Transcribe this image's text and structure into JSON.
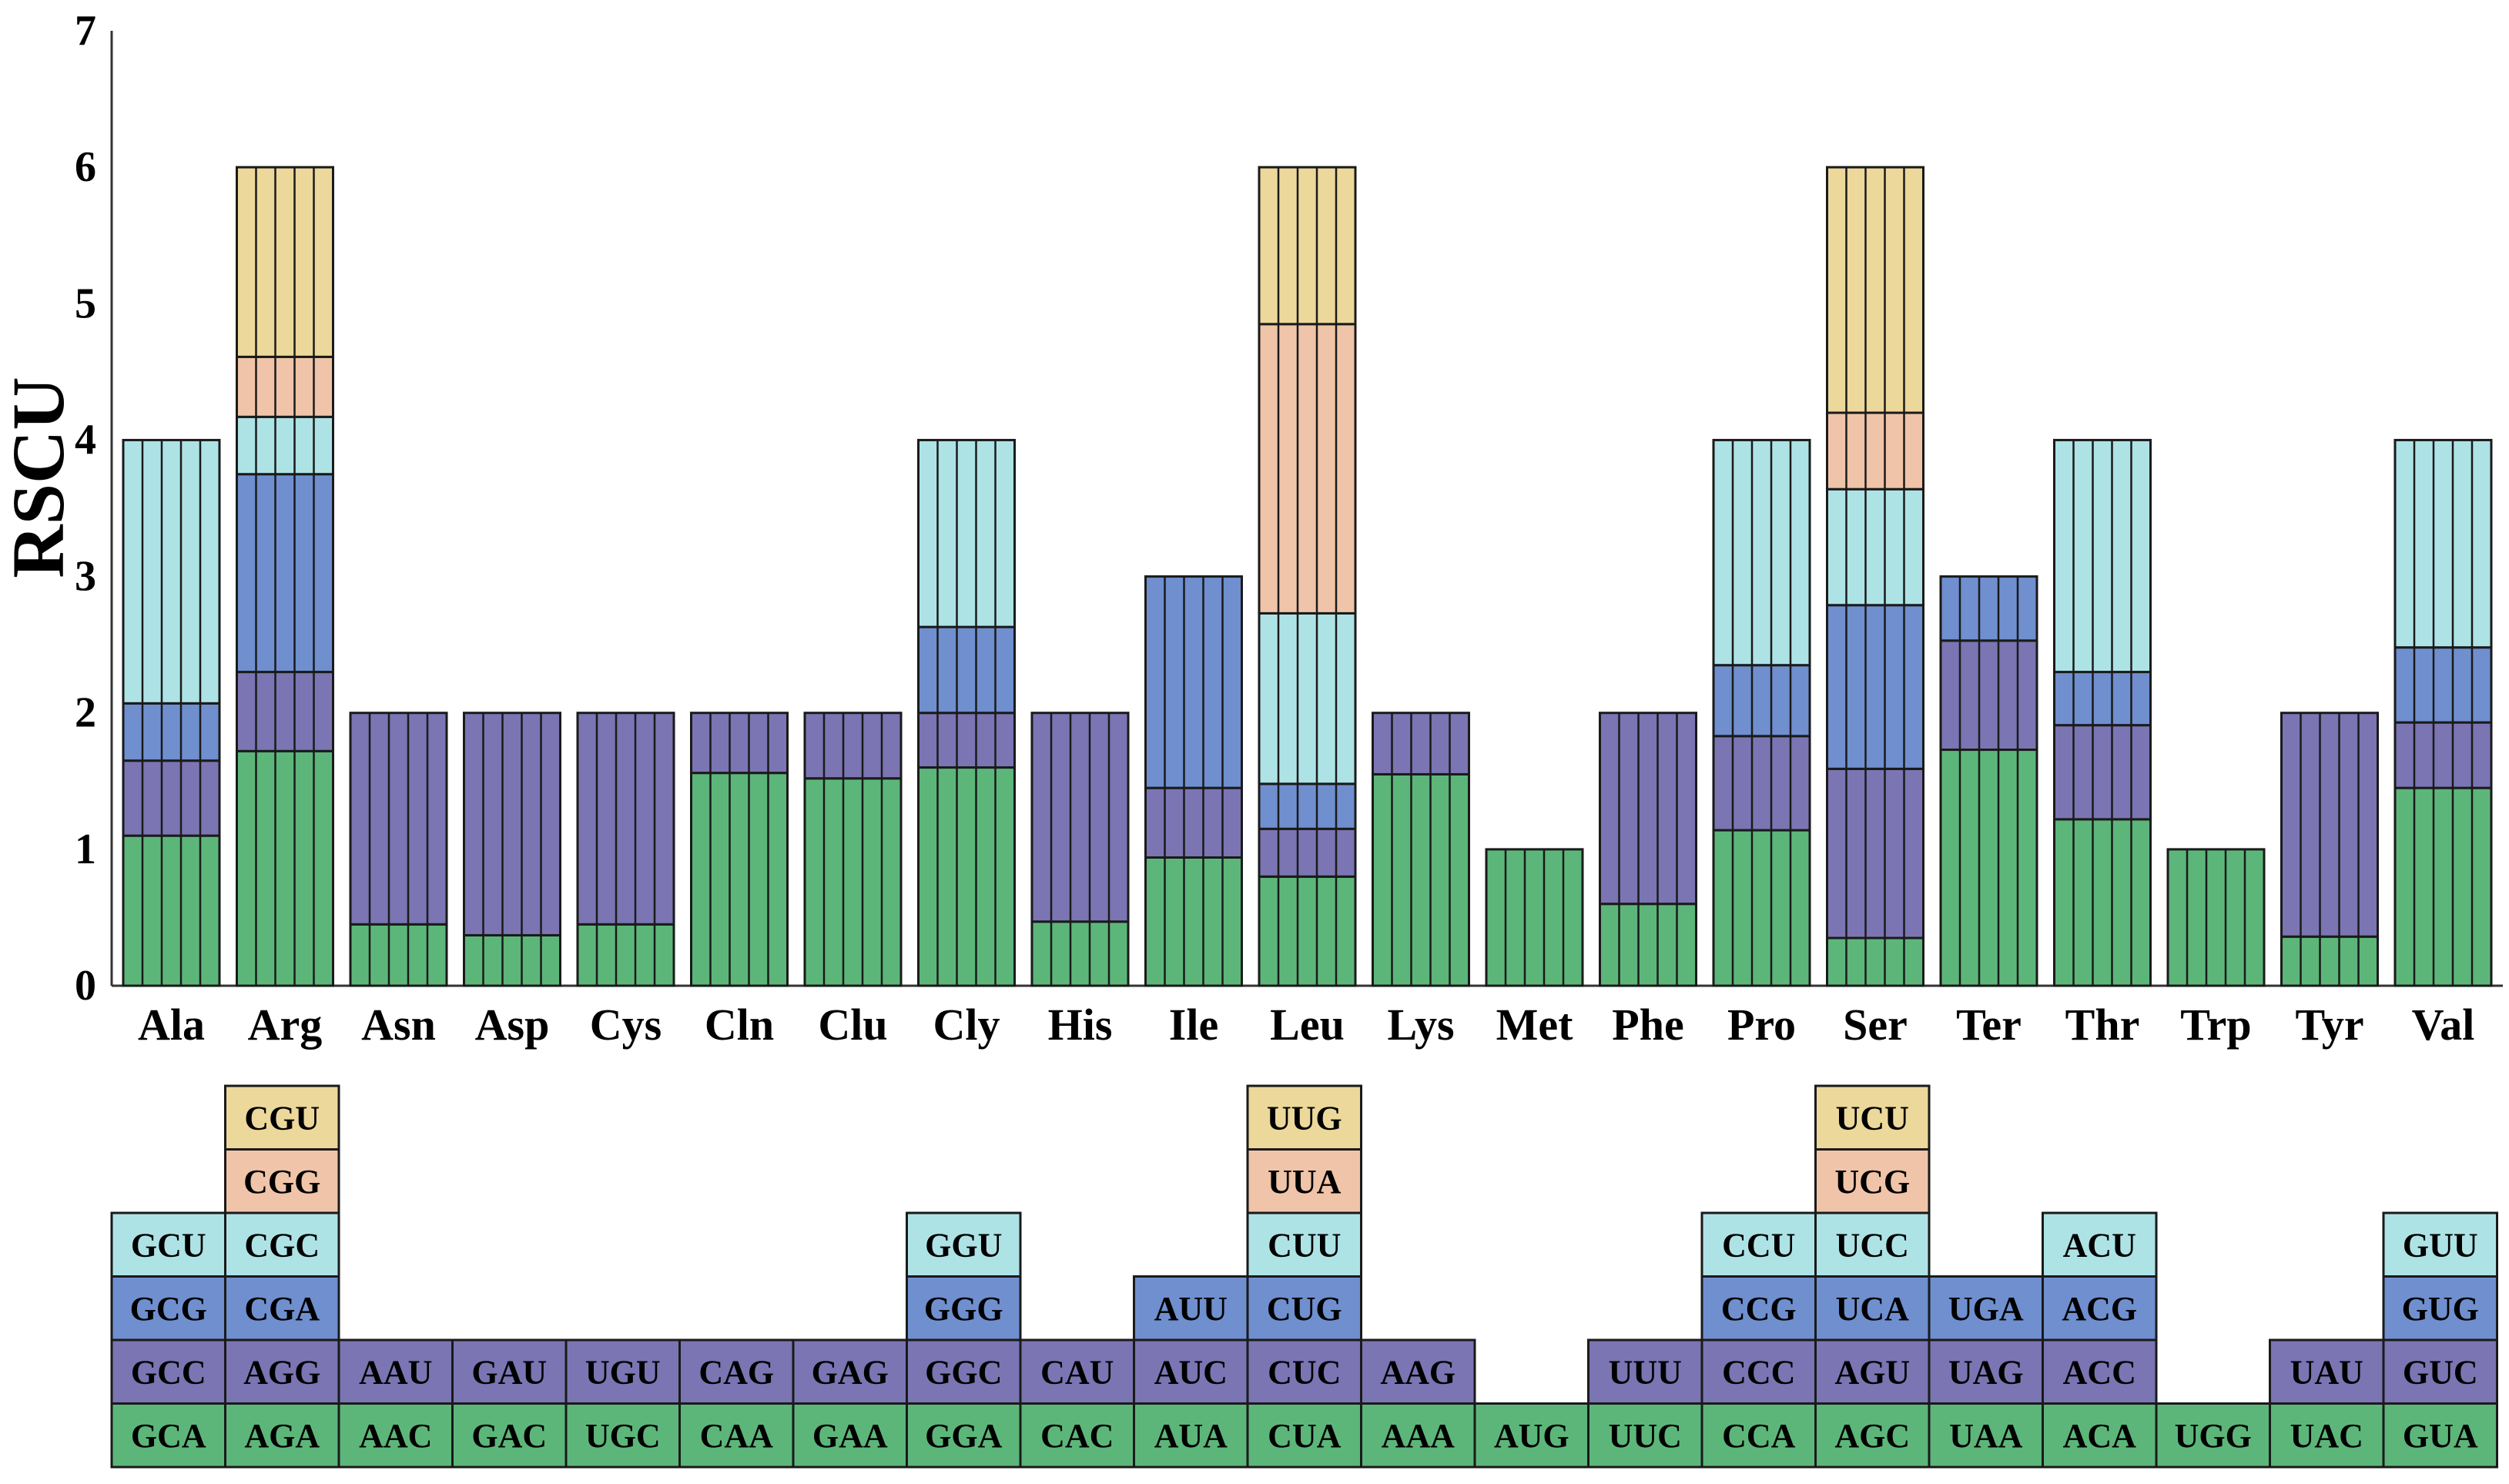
{
  "chart_data": {
    "type": "bar",
    "subtype": "stacked",
    "ylabel": "RSCU",
    "xlabel": "",
    "ylim": [
      0,
      7
    ],
    "yticks": [
      0,
      1,
      2,
      3,
      4,
      5,
      6,
      7
    ],
    "colors": [
      "#5cb67a",
      "#7b75b3",
      "#6f8fcf",
      "#aee3e6",
      "#f0c4a8",
      "#ecd89a"
    ],
    "groups": [
      {
        "name": "Ala",
        "segments": [
          {
            "codon": "GCA",
            "value": 1.1
          },
          {
            "codon": "GCC",
            "value": 0.55
          },
          {
            "codon": "GCG",
            "value": 0.42
          },
          {
            "codon": "GCU",
            "value": 1.93
          }
        ]
      },
      {
        "name": "Arg",
        "segments": [
          {
            "codon": "AGA",
            "value": 1.72
          },
          {
            "codon": "AGG",
            "value": 0.58
          },
          {
            "codon": "CGA",
            "value": 1.45
          },
          {
            "codon": "CGC",
            "value": 0.42
          },
          {
            "codon": "CGG",
            "value": 0.44
          },
          {
            "codon": "CGU",
            "value": 1.39
          }
        ]
      },
      {
        "name": "Asn",
        "segments": [
          {
            "codon": "AAC",
            "value": 0.45
          },
          {
            "codon": "AAU",
            "value": 1.55
          }
        ]
      },
      {
        "name": "Asp",
        "segments": [
          {
            "codon": "GAC",
            "value": 0.37
          },
          {
            "codon": "GAU",
            "value": 1.63
          }
        ]
      },
      {
        "name": "Cys",
        "segments": [
          {
            "codon": "UGC",
            "value": 0.45
          },
          {
            "codon": "UGU",
            "value": 1.55
          }
        ]
      },
      {
        "name": "Cln",
        "segments": [
          {
            "codon": "CAA",
            "value": 1.56
          },
          {
            "codon": "CAG",
            "value": 0.44
          }
        ]
      },
      {
        "name": "Clu",
        "segments": [
          {
            "codon": "GAA",
            "value": 1.52
          },
          {
            "codon": "GAG",
            "value": 0.48
          }
        ]
      },
      {
        "name": "Cly",
        "segments": [
          {
            "codon": "GGA",
            "value": 1.6
          },
          {
            "codon": "GGC",
            "value": 0.4
          },
          {
            "codon": "GGG",
            "value": 0.63
          },
          {
            "codon": "GGU",
            "value": 1.37
          }
        ]
      },
      {
        "name": "His",
        "segments": [
          {
            "codon": "CAC",
            "value": 0.47
          },
          {
            "codon": "CAU",
            "value": 1.53
          }
        ]
      },
      {
        "name": "Ile",
        "segments": [
          {
            "codon": "AUA",
            "value": 0.94
          },
          {
            "codon": "AUC",
            "value": 0.51
          },
          {
            "codon": "AUU",
            "value": 1.55
          }
        ]
      },
      {
        "name": "Leu",
        "segments": [
          {
            "codon": "CUA",
            "value": 0.8
          },
          {
            "codon": "CUC",
            "value": 0.35
          },
          {
            "codon": "CUG",
            "value": 0.33
          },
          {
            "codon": "CUU",
            "value": 1.25
          },
          {
            "codon": "UUA",
            "value": 2.12
          },
          {
            "codon": "UUG",
            "value": 1.15
          }
        ]
      },
      {
        "name": "Lys",
        "segments": [
          {
            "codon": "AAA",
            "value": 1.55
          },
          {
            "codon": "AAG",
            "value": 0.45
          }
        ]
      },
      {
        "name": "Met",
        "segments": [
          {
            "codon": "AUG",
            "value": 1.0
          }
        ]
      },
      {
        "name": "Phe",
        "segments": [
          {
            "codon": "UUC",
            "value": 0.6
          },
          {
            "codon": "UUU",
            "value": 1.4
          }
        ]
      },
      {
        "name": "Pro",
        "segments": [
          {
            "codon": "CCA",
            "value": 1.14
          },
          {
            "codon": "CCC",
            "value": 0.69
          },
          {
            "codon": "CCG",
            "value": 0.52
          },
          {
            "codon": "CCU",
            "value": 1.65
          }
        ]
      },
      {
        "name": "Ser",
        "segments": [
          {
            "codon": "AGC",
            "value": 0.35
          },
          {
            "codon": "AGU",
            "value": 1.24
          },
          {
            "codon": "UCA",
            "value": 1.2
          },
          {
            "codon": "UCC",
            "value": 0.85
          },
          {
            "codon": "UCG",
            "value": 0.56
          },
          {
            "codon": "UCU",
            "value": 1.8
          }
        ]
      },
      {
        "name": "Ter",
        "segments": [
          {
            "codon": "UAA",
            "value": 1.73
          },
          {
            "codon": "UAG",
            "value": 0.8
          },
          {
            "codon": "UGA",
            "value": 0.47
          }
        ]
      },
      {
        "name": "Thr",
        "segments": [
          {
            "codon": "ACA",
            "value": 1.22
          },
          {
            "codon": "ACC",
            "value": 0.69
          },
          {
            "codon": "ACG",
            "value": 0.39
          },
          {
            "codon": "ACU",
            "value": 1.7
          }
        ]
      },
      {
        "name": "Trp",
        "segments": [
          {
            "codon": "UGG",
            "value": 1.0
          }
        ]
      },
      {
        "name": "Tyr",
        "segments": [
          {
            "codon": "UAC",
            "value": 0.36
          },
          {
            "codon": "UAU",
            "value": 1.64
          }
        ]
      },
      {
        "name": "Val",
        "segments": [
          {
            "codon": "GUA",
            "value": 1.45
          },
          {
            "codon": "GUC",
            "value": 0.48
          },
          {
            "codon": "GUG",
            "value": 0.55
          },
          {
            "codon": "GUU",
            "value": 1.52
          }
        ]
      }
    ]
  }
}
